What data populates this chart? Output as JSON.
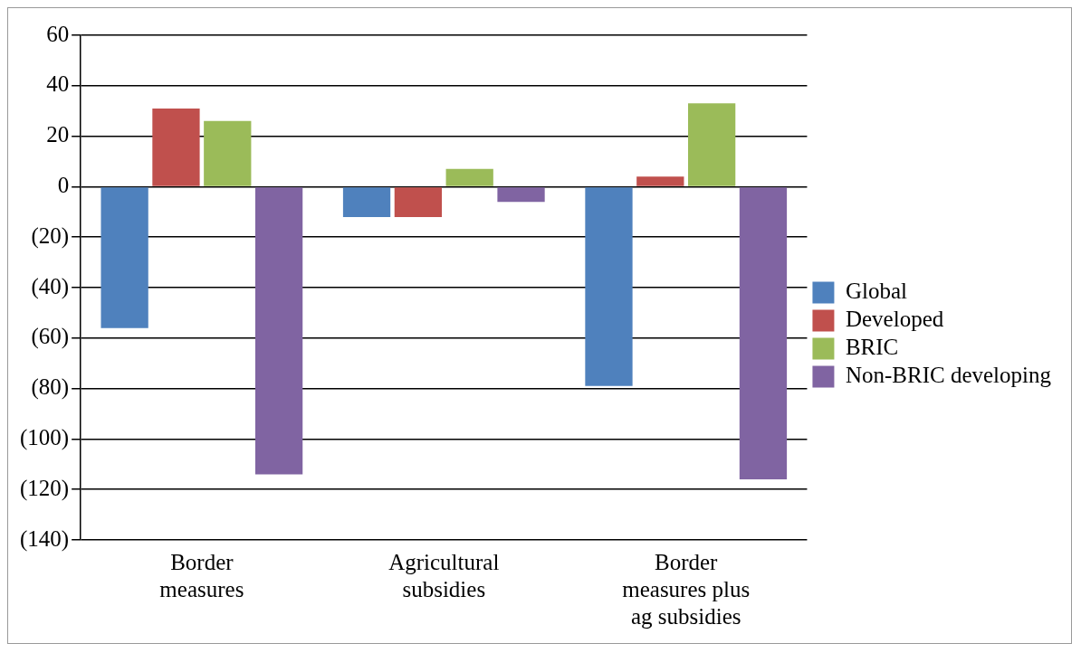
{
  "chart_data": {
    "type": "bar",
    "categories": [
      "Border measures",
      "Agricultural subsidies",
      "Border measures plus ag subsidies"
    ],
    "series": [
      {
        "name": "Global",
        "color": "#4f81bd",
        "values": [
          -56,
          -12,
          -79
        ]
      },
      {
        "name": "Developed",
        "color": "#c0504d",
        "values": [
          31,
          -12,
          4
        ]
      },
      {
        "name": "BRIC",
        "color": "#9bbb59",
        "values": [
          26,
          7,
          33
        ]
      },
      {
        "name": "Non-BRIC developing",
        "color": "#8064a2",
        "values": [
          -114,
          -6,
          -116
        ]
      }
    ],
    "ylim": [
      -140,
      60
    ],
    "yticks": [
      {
        "value": -140,
        "label": "(140)"
      },
      {
        "value": -120,
        "label": "(120)"
      },
      {
        "value": -100,
        "label": "(100)"
      },
      {
        "value": -80,
        "label": "(80)"
      },
      {
        "value": -60,
        "label": "(60)"
      },
      {
        "value": -40,
        "label": "(40)"
      },
      {
        "value": -20,
        "label": "(20)"
      },
      0,
      20,
      40,
      60
    ],
    "grid": "y",
    "legend": "right"
  }
}
